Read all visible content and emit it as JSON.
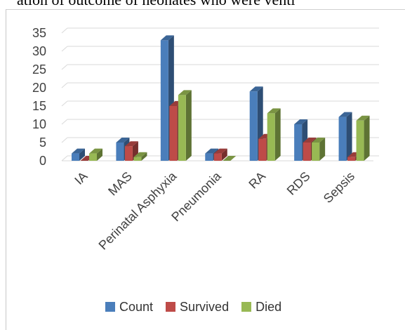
{
  "header": {
    "caption": "ation of outcome of neonates who were venti"
  },
  "chart_data": {
    "type": "bar",
    "categories": [
      "IA",
      "MAS",
      "Perinatal Asphyxia",
      "Pneumonia",
      "RA",
      "RDS",
      "Sepsis"
    ],
    "series": [
      {
        "name": "Count",
        "values": [
          2,
          5,
          33,
          2,
          19,
          10,
          12
        ],
        "color": "#4a7ebb"
      },
      {
        "name": "Survived",
        "values": [
          0,
          4,
          15,
          2,
          6,
          5,
          1
        ],
        "color": "#be4b48"
      },
      {
        "name": "Died",
        "values": [
          2,
          1,
          18,
          0,
          13,
          5,
          11
        ],
        "color": "#98b954"
      }
    ],
    "yticks": [
      0,
      5,
      10,
      15,
      20,
      25,
      30,
      35
    ],
    "ylim": [
      0,
      35
    ],
    "grid": true,
    "legend": "bottom",
    "chart_style": "3d-clustered-column"
  }
}
